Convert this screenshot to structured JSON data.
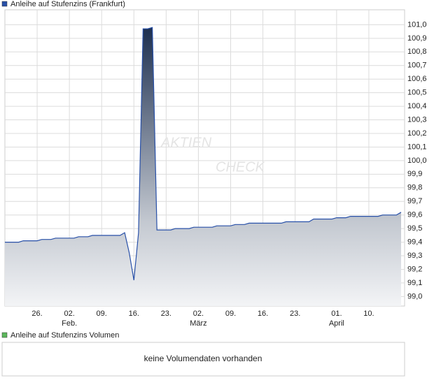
{
  "chart_data": [
    {
      "type": "area",
      "series": [
        {
          "name": "Anleihe auf Stufenzins (Frankfurt)",
          "color": "#2850a8",
          "values": [
            99.4,
            99.4,
            99.4,
            99.4,
            99.41,
            99.41,
            99.41,
            99.41,
            99.42,
            99.42,
            99.42,
            99.43,
            99.43,
            99.43,
            99.43,
            99.43,
            99.44,
            99.44,
            99.44,
            99.45,
            99.45,
            99.45,
            99.45,
            99.45,
            99.45,
            99.45,
            99.47,
            99.32,
            99.12,
            99.47,
            100.97,
            100.97,
            100.98,
            99.49,
            99.49,
            99.49,
            99.49,
            99.5,
            99.5,
            99.5,
            99.5,
            99.51,
            99.51,
            99.51,
            99.51,
            99.51,
            99.52,
            99.52,
            99.52,
            99.52,
            99.53,
            99.53,
            99.53,
            99.54,
            99.54,
            99.54,
            99.54,
            99.54,
            99.54,
            99.54,
            99.54,
            99.55,
            99.55,
            99.55,
            99.55,
            99.55,
            99.55,
            99.57,
            99.57,
            99.57,
            99.57,
            99.57,
            99.58,
            99.58,
            99.58,
            99.59,
            99.59,
            99.59,
            99.59,
            99.59,
            99.59,
            99.59,
            99.6,
            99.6,
            99.6,
            99.6,
            99.62
          ]
        }
      ],
      "categories": [
        null,
        null,
        null,
        null,
        null,
        null,
        null,
        "26.",
        null,
        null,
        null,
        null,
        null,
        null,
        "02.",
        null,
        null,
        null,
        null,
        null,
        null,
        "09.",
        null,
        null,
        null,
        null,
        null,
        null,
        "16.",
        null,
        null,
        null,
        null,
        null,
        null,
        "23.",
        null,
        null,
        null,
        null,
        null,
        null,
        "02.",
        null,
        null,
        null,
        null,
        null,
        null,
        "09.",
        null,
        null,
        null,
        null,
        null,
        null,
        "16.",
        null,
        null,
        null,
        null,
        null,
        null,
        "23.",
        null,
        null,
        null,
        null,
        null,
        null,
        null,
        null,
        "01.",
        null,
        null,
        null,
        null,
        null,
        null,
        "10.",
        null,
        null,
        null,
        null,
        null,
        null,
        null
      ],
      "months": [
        null,
        null,
        null,
        null,
        null,
        null,
        null,
        null,
        null,
        null,
        null,
        null,
        null,
        null,
        "Feb.",
        null,
        null,
        null,
        null,
        null,
        null,
        null,
        null,
        null,
        null,
        null,
        null,
        null,
        null,
        null,
        null,
        null,
        null,
        null,
        null,
        null,
        null,
        null,
        null,
        null,
        null,
        null,
        "März",
        null,
        null,
        null,
        null,
        null,
        null,
        null,
        null,
        null,
        null,
        null,
        null,
        null,
        null,
        null,
        null,
        null,
        null,
        null,
        null,
        null,
        null,
        null,
        null,
        null,
        null,
        null,
        null,
        null,
        "April",
        null,
        null,
        null,
        null,
        null,
        null,
        null,
        null,
        null,
        null,
        null,
        null,
        null,
        null,
        null
      ],
      "ylim": [
        98.93,
        101.11
      ],
      "yticks": [
        {
          "value": 99.0,
          "label": "99,0"
        },
        {
          "value": 99.1,
          "label": "99,1"
        },
        {
          "value": 99.2,
          "label": "99,2"
        },
        {
          "value": 99.3,
          "label": "99,3"
        },
        {
          "value": 99.4,
          "label": "99,4"
        },
        {
          "value": 99.5,
          "label": "99,5"
        },
        {
          "value": 99.6,
          "label": "99,6"
        },
        {
          "value": 99.7,
          "label": "99,7"
        },
        {
          "value": 99.8,
          "label": "99,8"
        },
        {
          "value": 99.9,
          "label": "99,9"
        },
        {
          "value": 100.0,
          "label": "100,0"
        },
        {
          "value": 100.1,
          "label": "100,1"
        },
        {
          "value": 100.2,
          "label": "100,2"
        },
        {
          "value": 100.3,
          "label": "100,3"
        },
        {
          "value": 100.4,
          "label": "100,4"
        },
        {
          "value": 100.5,
          "label": "100,5"
        },
        {
          "value": 100.6,
          "label": "100,6"
        },
        {
          "value": 100.7,
          "label": "100,7"
        },
        {
          "value": 100.8,
          "label": "100,8"
        },
        {
          "value": 100.9,
          "label": "100,9"
        },
        {
          "value": 101.0,
          "label": "101,0"
        }
      ],
      "grid": true,
      "watermark": [
        "AKTIEN",
        "CHECK"
      ]
    },
    {
      "type": "bar",
      "series": [
        {
          "name": "Anleihe auf Stufenzins Volumen",
          "color": "#5cb85c",
          "values": []
        }
      ],
      "note": "keine Volumendaten vorhanden"
    }
  ]
}
